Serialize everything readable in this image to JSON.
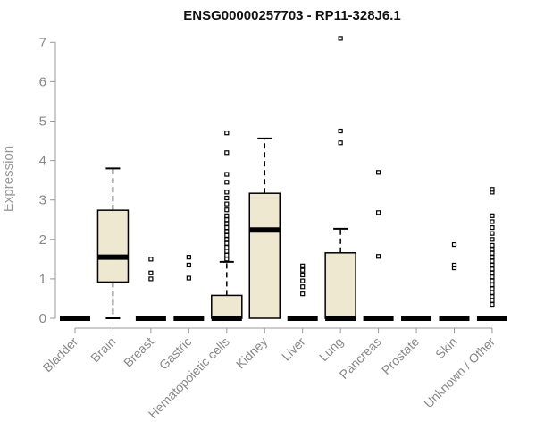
{
  "chart_data": {
    "type": "box",
    "title": "ENSG00000257703 - RP11-328J6.1",
    "ylabel": "Expression",
    "xlabel": "",
    "ylim": [
      0,
      7.2
    ],
    "yticks": [
      0,
      1,
      2,
      3,
      4,
      5,
      6,
      7
    ],
    "colors": {
      "box_fill": "#efe8d0",
      "median": "#000000",
      "outlier": "#000000",
      "axis": "#999999"
    },
    "categories": [
      "Bladder",
      "Brain",
      "Breast",
      "Gastric",
      "Hematopoietic cells",
      "Kidney",
      "Liver",
      "Lung",
      "Pancreas",
      "Prostate",
      "Skin",
      "Unknown / Other"
    ],
    "boxes": [
      {
        "min": 0,
        "q1": 0,
        "median": 0,
        "q3": 0,
        "max": 0,
        "outliers": []
      },
      {
        "min": 0,
        "q1": 0.92,
        "median": 1.55,
        "q3": 2.74,
        "max": 3.8,
        "outliers": []
      },
      {
        "min": 0,
        "q1": 0,
        "median": 0,
        "q3": 0,
        "max": 0,
        "outliers": [
          1.0,
          1.15,
          1.5
        ]
      },
      {
        "min": 0,
        "q1": 0,
        "median": 0,
        "q3": 0,
        "max": 0,
        "outliers": [
          1.02,
          1.35,
          1.55
        ]
      },
      {
        "min": 0,
        "q1": 0,
        "median": 0,
        "q3": 0.58,
        "max": 1.43,
        "outliers": [
          1.5,
          1.6,
          1.7,
          1.8,
          1.9,
          2.0,
          2.1,
          2.2,
          2.3,
          2.4,
          2.5,
          2.6,
          2.75,
          2.9,
          3.05,
          3.2,
          3.45,
          3.65,
          4.2,
          4.7
        ]
      },
      {
        "min": 0,
        "q1": 0,
        "median": 2.24,
        "q3": 3.17,
        "max": 4.56,
        "outliers": []
      },
      {
        "min": 0,
        "q1": 0,
        "median": 0,
        "q3": 0,
        "max": 0,
        "outliers": [
          0.62,
          0.8,
          0.95,
          1.1,
          1.22,
          1.33
        ]
      },
      {
        "min": 0,
        "q1": 0,
        "median": 0,
        "q3": 1.66,
        "max": 2.27,
        "outliers": [
          4.45,
          4.75,
          7.1
        ]
      },
      {
        "min": 0,
        "q1": 0,
        "median": 0,
        "q3": 0,
        "max": 0,
        "outliers": [
          1.57,
          2.68,
          3.7
        ]
      },
      {
        "min": 0,
        "q1": 0,
        "median": 0,
        "q3": 0,
        "max": 0,
        "outliers": []
      },
      {
        "min": 0,
        "q1": 0,
        "median": 0,
        "q3": 0,
        "max": 0,
        "outliers": [
          1.28,
          1.35,
          1.87
        ]
      },
      {
        "min": 0,
        "q1": 0,
        "median": 0,
        "q3": 0,
        "max": 0,
        "outliers": [
          0.35,
          0.45,
          0.55,
          0.65,
          0.75,
          0.85,
          0.95,
          1.05,
          1.15,
          1.25,
          1.35,
          1.45,
          1.55,
          1.65,
          1.75,
          1.85,
          2.0,
          2.15,
          2.3,
          2.45,
          2.6,
          3.2,
          3.27
        ]
      }
    ]
  }
}
